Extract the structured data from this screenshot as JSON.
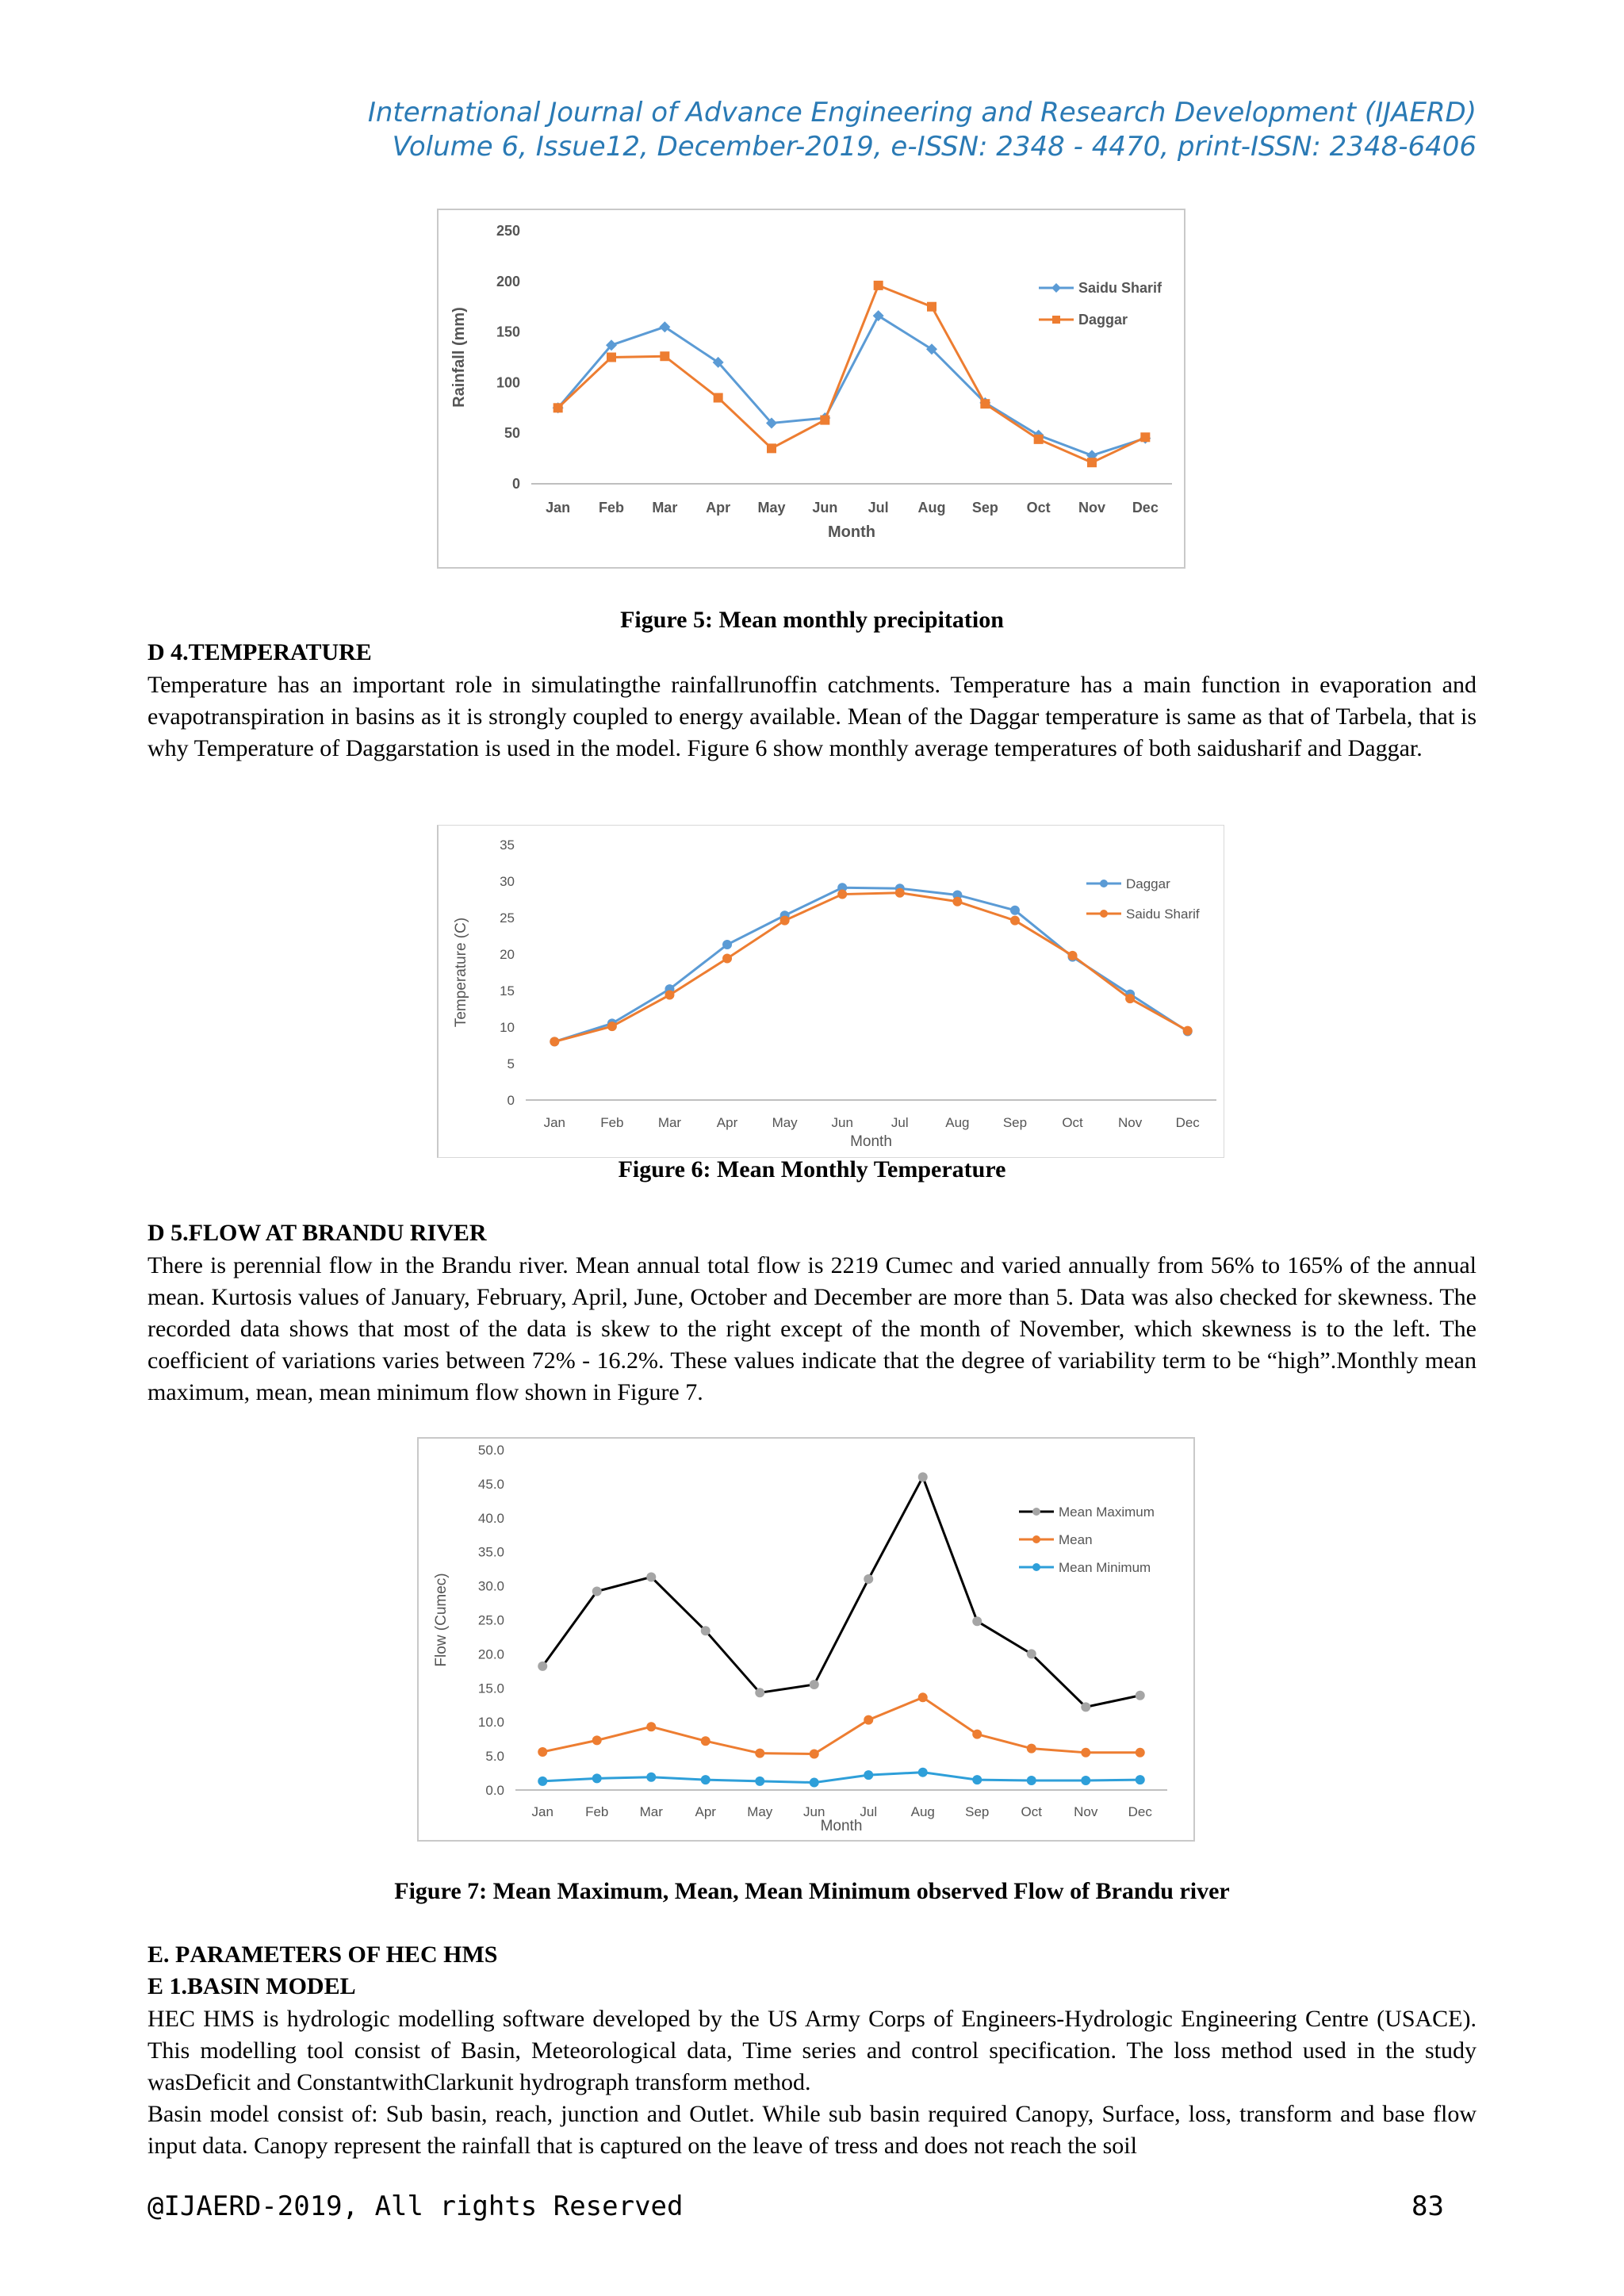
{
  "header": {
    "line1": "International Journal of Advance Engineering and Research Development (IJAERD)",
    "line2": "Volume 6, Issue12, December-2019, e-ISSN: 2348 - 4470, print-ISSN: 2348-6406"
  },
  "captions": {
    "fig5": "Figure 5: Mean monthly precipitation",
    "fig6": "Figure 6: Mean Monthly Temperature",
    "fig7": "Figure 7: Mean Maximum, Mean, Mean Minimum observed Flow of Brandu river"
  },
  "sections": {
    "d4": "D 4.Temperature",
    "d5": "D 5.Flow at Brandu river",
    "e": "E. Parameters of HEC HMS",
    "e1": "E 1.Basin Model"
  },
  "paragraphs": {
    "temperature": "Temperature has an important role in simulatingthe rainfallrunoffin catchments. Temperature has a main function in evaporation and evapotranspiration in basins as it is strongly coupled to energy available. Mean of the Daggar temperature is same as that of Tarbela, that is why Temperature of Daggarstation is used in the model. Figure 6 show monthly average temperatures of both saidusharif and Daggar.",
    "flow": "There is perennial flow in the Brandu river. Mean annual total flow is 2219 Cumec and varied annually from 56% to 165% of the annual mean.  Kurtosis values of January, February, April, June, October and December are more than 5. Data was also checked for skewness. The recorded data shows that most of the data is skew to the right except of the month of November, which skewness is to the left.  The coefficient of variations varies between 72% - 16.2%. These values indicate that the degree of variability term to be “high”.Monthly mean maximum, mean, mean minimum flow shown in Figure 7.",
    "hec1": "HEC HMS is hydrologic modelling software developed by the US Army Corps of Engineers-Hydrologic Engineering Centre (USACE). This modelling tool consist of Basin, Meteorological data, Time series and control specification. The loss method used in the study wasDeficit and ConstantwithClarkunit hydrograph transform method.",
    "hec2": "Basin model consist of: Sub basin, reach, junction and Outlet. While sub basin required Canopy, Surface, loss, transform and base flow input data. Canopy represent the rainfall that is captured on the leave of tress and does not reach the soil"
  },
  "footer": {
    "left": "@IJAERD-2019, All rights Reserved",
    "right": "83"
  },
  "chart_data": [
    {
      "type": "line",
      "categories": [
        "Jan",
        "Feb",
        "Mar",
        "Apr",
        "May",
        "Jun",
        "Jul",
        "Aug",
        "Sep",
        "Oct",
        "Nov",
        "Dec"
      ],
      "series": [
        {
          "name": "Saidu Sharif",
          "color": "#5b9bd5",
          "marker": "diamond",
          "values": [
            75,
            137,
            155,
            120,
            60,
            65,
            166,
            133,
            80,
            48,
            28,
            45
          ]
        },
        {
          "name": "Daggar",
          "color": "#ed7d31",
          "marker": "square",
          "values": [
            75,
            125,
            126,
            85,
            35,
            63,
            196,
            175,
            79,
            44,
            21,
            46
          ]
        }
      ],
      "xlabel": "Month",
      "ylabel": "Rainfall (mm)",
      "ylim": [
        0,
        250
      ],
      "yticks": [
        0,
        50,
        100,
        150,
        200,
        250
      ],
      "grid": false,
      "legend": "right"
    },
    {
      "type": "line",
      "categories": [
        "Jan",
        "Feb",
        "Mar",
        "Apr",
        "May",
        "Jun",
        "Jul",
        "Aug",
        "Sep",
        "Oct",
        "Nov",
        "Dec"
      ],
      "series": [
        {
          "name": "Daggar",
          "color": "#5b9bd5",
          "marker": "circle",
          "values": [
            8.0,
            10.5,
            15.2,
            21.3,
            25.3,
            29.1,
            29.0,
            28.1,
            26.0,
            19.6,
            14.5,
            9.4
          ]
        },
        {
          "name": "Saidu Sharif",
          "color": "#ed7d31",
          "marker": "circle",
          "values": [
            8.0,
            10.1,
            14.4,
            19.4,
            24.6,
            28.2,
            28.4,
            27.2,
            24.6,
            19.8,
            13.9,
            9.5
          ]
        }
      ],
      "xlabel": "Month",
      "ylabel": "Temperature (C)",
      "ylim": [
        0,
        35
      ],
      "yticks": [
        0,
        5,
        10,
        15,
        20,
        25,
        30,
        35
      ],
      "grid": false,
      "legend": "right"
    },
    {
      "type": "line",
      "categories": [
        "Jan",
        "Feb",
        "Mar",
        "Apr",
        "May",
        "Jun",
        "Jul",
        "Aug",
        "Sep",
        "Oct",
        "Nov",
        "Dec"
      ],
      "series": [
        {
          "name": "Mean Maximum",
          "color": "#000000",
          "marker_color": "#a5a5a5",
          "marker": "circle",
          "values": [
            18.2,
            29.2,
            31.3,
            23.4,
            14.3,
            15.5,
            31.0,
            46.0,
            24.8,
            20.0,
            12.2,
            13.9
          ]
        },
        {
          "name": "Mean",
          "color": "#ed7d31",
          "marker": "circle",
          "values": [
            5.6,
            7.3,
            9.3,
            7.2,
            5.4,
            5.3,
            10.3,
            13.6,
            8.2,
            6.1,
            5.5,
            5.5
          ]
        },
        {
          "name": "Mean Minimum",
          "color": "#2e9fd9",
          "marker": "circle",
          "values": [
            1.3,
            1.7,
            1.9,
            1.5,
            1.3,
            1.1,
            2.2,
            2.6,
            1.5,
            1.4,
            1.4,
            1.5
          ]
        }
      ],
      "xlabel": "Month",
      "ylabel": "Flow (Cumec)",
      "ylim": [
        0,
        50
      ],
      "yticks": [
        "0.0",
        "5.0",
        "10.0",
        "15.0",
        "20.0",
        "25.0",
        "30.0",
        "35.0",
        "40.0",
        "45.0",
        "50.0"
      ],
      "grid": false,
      "legend": "right"
    }
  ]
}
